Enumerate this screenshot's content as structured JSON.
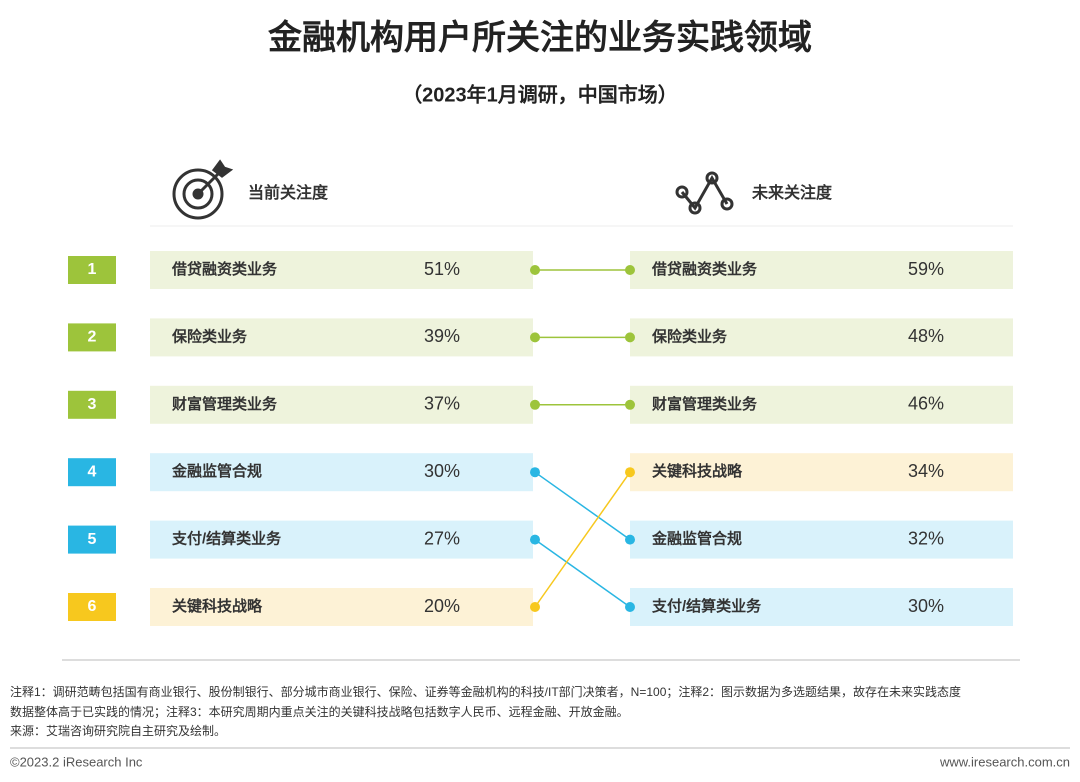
{
  "title": "金融机构用户所关注的业务实践领域",
  "subtitle": "（2023年1月调研，中国市场）",
  "current": {
    "label": "当前关注度",
    "rows": [
      {
        "rank": "1",
        "name": "借贷融资类业务",
        "value": "51%"
      },
      {
        "rank": "2",
        "name": "保险类业务",
        "value": "39%"
      },
      {
        "rank": "3",
        "name": "财富管理类业务",
        "value": "37%"
      },
      {
        "rank": "4",
        "name": "金融监管合规",
        "value": "30%"
      },
      {
        "rank": "5",
        "name": "支付/结算类业务",
        "value": "27%"
      },
      {
        "rank": "6",
        "name": "关键科技战略",
        "value": "20%"
      }
    ]
  },
  "future": {
    "label": "未来关注度",
    "rows": [
      {
        "name": "借贷融资类业务",
        "value": "59%"
      },
      {
        "name": "保险类业务",
        "value": "48%"
      },
      {
        "name": "财富管理类业务",
        "value": "46%"
      },
      {
        "name": "关键科技战略",
        "value": "34%"
      },
      {
        "name": "金融监管合规",
        "value": "32%"
      },
      {
        "name": "支付/结算类业务",
        "value": "30%"
      }
    ]
  },
  "notes": [
    "注释1：调研范畴包括国有商业银行、股份制银行、部分城市商业银行、保险、证券等金融机构的科技/IT部门决策者，N=100；注释2：图示数据为多选题结果，故存在未来实践态度",
    "数据整体高于已实践的情况；注释3：本研究周期内重点关注的关键科技战略包括数字人民币、远程金融、开放金融。",
    "来源：艾瑞咨询研究院自主研究及绘制。"
  ],
  "footer": {
    "left": "©2023.2 iResearch Inc",
    "right": "www.iresearch.com.cn"
  }
}
